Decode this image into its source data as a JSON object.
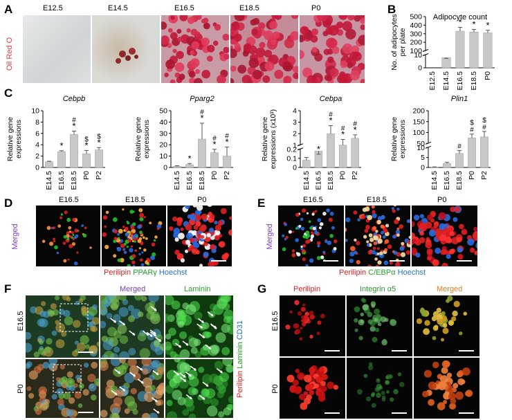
{
  "panel_letters": {
    "A": "A",
    "B": "B",
    "C": "C",
    "D": "D",
    "E": "E",
    "F": "F",
    "G": "G"
  },
  "panelA": {
    "stain_label": "Oil Red O",
    "stages": [
      "E12.5",
      "E14.5",
      "E16.5",
      "E18.5",
      "P0"
    ],
    "colors": {
      "stain": "#e23a3a"
    }
  },
  "chart_data": [
    {
      "id": "B",
      "type": "bar",
      "title": "Adipocyte count",
      "ylabel": "No. of adipocytes per plate",
      "categories": [
        "E12.5",
        "E14.5",
        "E16.5",
        "E18.5",
        "P0"
      ],
      "values": [
        0,
        8,
        330,
        320,
        310
      ],
      "errors": [
        0,
        4,
        45,
        30,
        30
      ],
      "marks": [
        "",
        "",
        "*",
        "*",
        "*"
      ],
      "y_lower_ticks": [
        "0",
        "10"
      ],
      "y_upper_ticks": [
        "100",
        "200",
        "300",
        "400",
        "500"
      ],
      "broken_axis": true
    },
    {
      "id": "C1",
      "type": "bar",
      "title": "Cebpb",
      "ylabel": "Relative gene expressions",
      "categories": [
        "E14.5",
        "E16.5",
        "E18.5",
        "P0",
        "P2"
      ],
      "values": [
        1.0,
        2.8,
        5.8,
        2.4,
        3.1
      ],
      "errors": [
        0.1,
        0.15,
        0.6,
        0.6,
        0.4
      ],
      "marks": [
        "",
        "*",
        "#\n*",
        "$\n*",
        "$\n*"
      ],
      "ylim": [
        0,
        10
      ],
      "yticks": [
        "0",
        "2",
        "4",
        "6",
        "8",
        "10"
      ]
    },
    {
      "id": "C2",
      "type": "bar",
      "title": "Pparg2",
      "ylabel": "Relative gene expressions",
      "categories": [
        "E14.5",
        "E16.5",
        "E18.5",
        "P0",
        "P2"
      ],
      "values": [
        1,
        2.5,
        25,
        13,
        10
      ],
      "errors": [
        0.5,
        1,
        14,
        3,
        8
      ],
      "marks": [
        "",
        "*",
        "#\n*",
        "#\n*",
        "#\n*"
      ],
      "ylim": [
        0,
        50
      ],
      "yticks": [
        "0",
        "10",
        "20",
        "30",
        "40",
        "50"
      ]
    },
    {
      "id": "C3",
      "type": "bar",
      "title": "Cebpa",
      "ylabel": "Relative gene expressions (x10³)",
      "categories": [
        "E14.5",
        "E16.5",
        "E18.5",
        "P0",
        "P2"
      ],
      "values": [
        0.08,
        0.18,
        2.0,
        1.0,
        1.6
      ],
      "errors": [
        0.03,
        0.03,
        0.7,
        0.5,
        0.3
      ],
      "marks": [
        "",
        "*",
        "#\n*",
        "#\n*",
        "#\n*"
      ],
      "broken_axis": true,
      "y_lower_ticks": [
        "0",
        "0.1",
        "0.2"
      ],
      "y_upper_ticks": [
        "1",
        "2",
        "3",
        "4"
      ]
    },
    {
      "id": "C4",
      "type": "bar",
      "title": "Plin1",
      "ylabel": "Relative gene expressions",
      "categories": [
        "E14.5",
        "E16.5",
        "E18.5",
        "P0",
        "P2"
      ],
      "values": [
        0.2,
        2,
        7,
        75,
        80
      ],
      "errors": [
        0.1,
        0.6,
        1.5,
        18,
        25
      ],
      "marks": [
        "",
        "",
        "#",
        "$\n#",
        "$\n#"
      ],
      "broken_axis": true,
      "y_lower_ticks": [
        "0",
        "5",
        "10"
      ],
      "y_upper_ticks": [
        "50",
        "100",
        "150",
        "200"
      ]
    }
  ],
  "panelD": {
    "stages": [
      "E16.5",
      "E18.5",
      "P0"
    ],
    "row_label": "Merged",
    "legend": [
      "Perilipin",
      "PPARγ",
      "Hoechst"
    ]
  },
  "panelE": {
    "stages": [
      "E16.5",
      "E18.5",
      "P0"
    ],
    "row_label": "Merged",
    "legend": [
      "Perilipin",
      "C/EBPα",
      "Hoechst"
    ]
  },
  "panelF": {
    "col_titles": [
      "Merged",
      "Laminin"
    ],
    "rows": [
      "E16.5",
      "P0"
    ],
    "legend": [
      "Perilipin",
      "Laminin",
      "CD31"
    ]
  },
  "panelG": {
    "col_titles": [
      "Perilipin",
      "Integrin α5",
      "Merged"
    ],
    "rows": [
      "E16.5",
      "P0"
    ]
  },
  "colors": {
    "red": "#e02020",
    "green": "#22a02a",
    "blue": "#1f6fd0",
    "purple": "#7a3db8",
    "orange": "#e07b20",
    "bar": "#c8c8c8"
  }
}
